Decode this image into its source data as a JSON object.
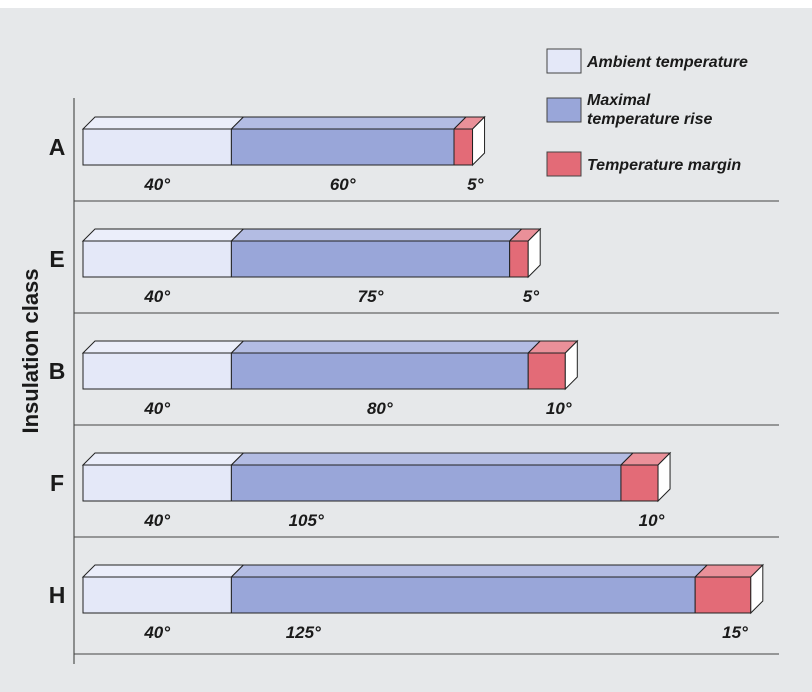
{
  "chart_data": {
    "type": "bar",
    "stacked": true,
    "orientation": "horizontal",
    "ylabel": "Insulation class",
    "categories": [
      "A",
      "E",
      "B",
      "F",
      "H"
    ],
    "series": [
      {
        "name": "Ambient temperature",
        "values": [
          40,
          40,
          40,
          40,
          40
        ],
        "color": "#e4e8f8"
      },
      {
        "name": "Maximal temperature rise",
        "values": [
          60,
          75,
          80,
          105,
          125
        ],
        "color": "#99a6d9"
      },
      {
        "name": "Temperature margin",
        "values": [
          5,
          5,
          10,
          10,
          15
        ],
        "color": "#e36b77"
      }
    ],
    "value_labels": [
      [
        "40°",
        "60°",
        "5°"
      ],
      [
        "40°",
        "75°",
        "5°"
      ],
      [
        "40°",
        "80°",
        "10°"
      ],
      [
        "40°",
        "105°",
        "10°"
      ],
      [
        "40°",
        "125°",
        "15°"
      ]
    ],
    "legend": {
      "placement": "top-right",
      "entries": [
        {
          "lines": [
            "Ambient temperature"
          ]
        },
        {
          "lines": [
            "Maximal",
            "temperature rise"
          ]
        },
        {
          "lines": [
            "Temperature margin"
          ]
        }
      ]
    },
    "grid": false
  }
}
